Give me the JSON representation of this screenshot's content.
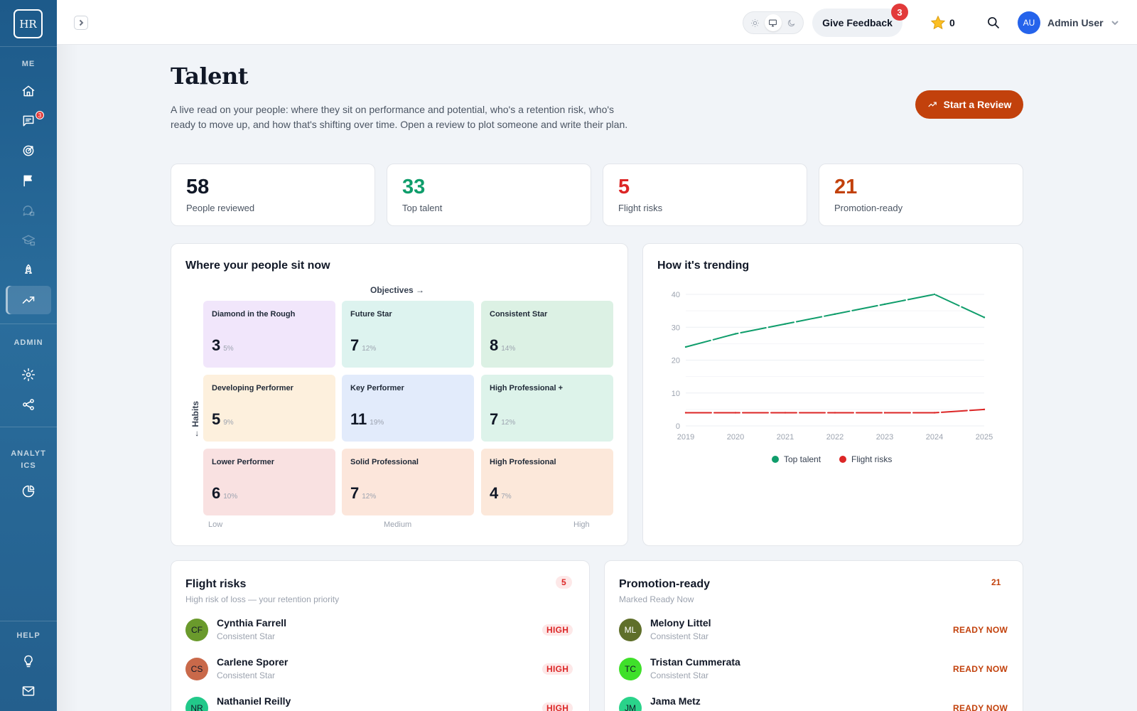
{
  "sidebar": {
    "logo": "HR",
    "sections": {
      "me": "ME",
      "admin": "ADMIN",
      "analytics_line1": "ANALYT",
      "analytics_line2": "ICS",
      "help": "HELP"
    },
    "message_badge": "3"
  },
  "topbar": {
    "feedback_label": "Give Feedback",
    "feedback_count": "3",
    "points": "0",
    "user_initials": "AU",
    "user_name": "Admin User"
  },
  "page": {
    "title": "Talent",
    "description": "A live read on your people: where they sit on performance and potential, who's a retention risk, who's ready to move up, and how that's shifting over time. Open a review to plot someone and write their plan.",
    "start_review_label": "Start a Review"
  },
  "stats": [
    {
      "value": "58",
      "label": "People reviewed",
      "color": "#111827"
    },
    {
      "value": "33",
      "label": "Top talent",
      "color": "#0f9d6b"
    },
    {
      "value": "5",
      "label": "Flight risks",
      "color": "#dc2626"
    },
    {
      "value": "21",
      "label": "Promotion-ready",
      "color": "#c2410c"
    }
  ],
  "grid": {
    "title": "Where your people sit now",
    "x_axis": "Objectives →",
    "y_axis": "← Habits",
    "x_ticks": [
      "Low",
      "Medium",
      "High"
    ],
    "cells": [
      {
        "name": "Diamond in the Rough",
        "count": "3",
        "pct": "5%",
        "color": "#f1e6fb"
      },
      {
        "name": "Future Star",
        "count": "7",
        "pct": "12%",
        "color": "#ddf3ef"
      },
      {
        "name": "Consistent Star",
        "count": "8",
        "pct": "14%",
        "color": "#dcf1e4"
      },
      {
        "name": "Developing Performer",
        "count": "5",
        "pct": "9%",
        "color": "#fdf0dd"
      },
      {
        "name": "Key Performer",
        "count": "11",
        "pct": "19%",
        "color": "#e2ebfb"
      },
      {
        "name": "High Professional +",
        "count": "7",
        "pct": "12%",
        "color": "#ddf3ea"
      },
      {
        "name": "Lower Performer",
        "count": "6",
        "pct": "10%",
        "color": "#f9e1e1"
      },
      {
        "name": "Solid Professional",
        "count": "7",
        "pct": "12%",
        "color": "#fce6db"
      },
      {
        "name": "High Professional",
        "count": "4",
        "pct": "7%",
        "color": "#fce8da"
      }
    ]
  },
  "trend": {
    "title": "How it's trending"
  },
  "chart_data": {
    "type": "line",
    "x": [
      "2019",
      "2020",
      "2021",
      "2022",
      "2023",
      "2024",
      "2025"
    ],
    "series": [
      {
        "name": "Top talent",
        "values": [
          24,
          28,
          31,
          34,
          37,
          40,
          33
        ],
        "color": "#0f9d6b"
      },
      {
        "name": "Flight risks",
        "values": [
          4,
          4,
          4,
          4,
          4,
          4,
          5
        ],
        "color": "#dc2626"
      }
    ],
    "ylim": [
      0,
      40
    ],
    "y_ticks": [
      "0",
      "10",
      "20",
      "30",
      "40"
    ],
    "grid": true,
    "legend": "bottom-center"
  },
  "flight_risks": {
    "title": "Flight risks",
    "subtitle": "High risk of loss — your retention priority",
    "count": "5",
    "rows": [
      {
        "initials": "CF",
        "name": "Cynthia Farrell",
        "role": "Consistent Star",
        "level": "HIGH",
        "avatar_color": "#6a9a2c"
      },
      {
        "initials": "CS",
        "name": "Carlene Sporer",
        "role": "Consistent Star",
        "level": "HIGH",
        "avatar_color": "#c9694a"
      },
      {
        "initials": "NR",
        "name": "Nathaniel Reilly",
        "role": "",
        "level": "HIGH",
        "avatar_color": "#22c98a"
      }
    ]
  },
  "promotion_ready": {
    "title": "Promotion-ready",
    "subtitle": "Marked Ready Now",
    "count": "21",
    "rows": [
      {
        "initials": "ML",
        "name": "Melony Littel",
        "role": "Consistent Star",
        "status": "READY NOW",
        "avatar_color": "#5f6f2a"
      },
      {
        "initials": "TC",
        "name": "Tristan Cummerata",
        "role": "Consistent Star",
        "status": "READY NOW",
        "avatar_color": "#3fe02a"
      },
      {
        "initials": "JM",
        "name": "Jama Metz",
        "role": "",
        "status": "READY NOW",
        "avatar_color": "#2ad38a"
      }
    ]
  }
}
